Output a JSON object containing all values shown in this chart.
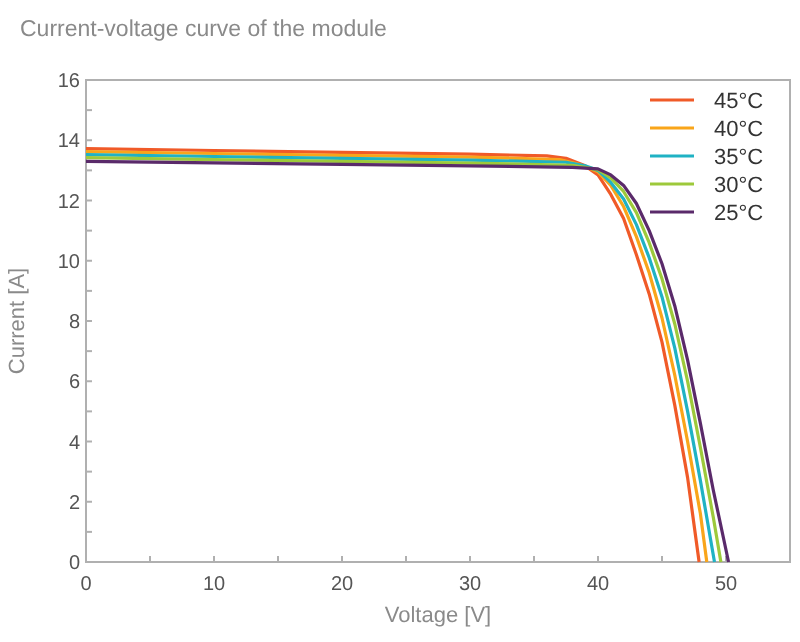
{
  "chart_data": {
    "type": "line",
    "title": "Current-voltage curve of the module",
    "xlabel": "Voltage [V]",
    "ylabel": "Current [A]",
    "xlim": [
      0,
      55
    ],
    "ylim": [
      0,
      16
    ],
    "xticks": [
      0,
      {
        "value": 5,
        "label": null
      },
      10,
      {
        "value": 15,
        "label": null
      },
      20,
      {
        "value": 25,
        "label": null
      },
      30,
      {
        "value": 35,
        "label": null
      },
      40,
      {
        "value": 45,
        "label": null
      },
      50
    ],
    "yticks": [
      0,
      {
        "value": 1,
        "label": null
      },
      2,
      {
        "value": 3,
        "label": null
      },
      4,
      {
        "value": 5,
        "label": null
      },
      6,
      {
        "value": 7,
        "label": null
      },
      8,
      {
        "value": 9,
        "label": null
      },
      10,
      {
        "value": 11,
        "label": null
      },
      12,
      {
        "value": 13,
        "label": null
      },
      14,
      {
        "value": 15,
        "label": null
      },
      16
    ],
    "grid": false,
    "legend": "top right",
    "marker": "none",
    "line_style": "solid",
    "series": [
      {
        "name": "45°C",
        "color": "#f05a28",
        "x": [
          0,
          10,
          20,
          30,
          36,
          37.5,
          39,
          40,
          41,
          42,
          43,
          44,
          45,
          46,
          47,
          47.9
        ],
        "values": [
          13.72,
          13.66,
          13.6,
          13.54,
          13.48,
          13.4,
          13.15,
          12.85,
          12.2,
          11.4,
          10.2,
          8.9,
          7.3,
          5.2,
          2.8,
          0
        ]
      },
      {
        "name": "40°C",
        "color": "#f9a51a",
        "x": [
          0,
          10,
          20,
          30,
          37,
          38.5,
          40,
          41,
          42,
          43,
          44,
          45,
          46,
          47,
          48,
          48.5
        ],
        "values": [
          13.62,
          13.56,
          13.5,
          13.44,
          13.36,
          13.2,
          12.95,
          12.5,
          11.8,
          10.8,
          9.6,
          8.1,
          6.2,
          4.0,
          1.6,
          0
        ]
      },
      {
        "name": "35°C",
        "color": "#1fb2c4",
        "x": [
          0,
          10,
          20,
          30,
          37.5,
          39,
          40,
          41,
          42,
          43,
          44,
          45,
          46,
          47,
          48,
          49.1
        ],
        "values": [
          13.52,
          13.46,
          13.4,
          13.34,
          13.27,
          13.15,
          13.0,
          12.6,
          12.05,
          11.2,
          10.1,
          8.8,
          7.1,
          5.0,
          2.7,
          0
        ]
      },
      {
        "name": "30°C",
        "color": "#9dc93b",
        "x": [
          0,
          10,
          20,
          30,
          38,
          39,
          40,
          41,
          42,
          43,
          44,
          45,
          46,
          47,
          48,
          49,
          49.6
        ],
        "values": [
          13.42,
          13.36,
          13.3,
          13.24,
          13.17,
          13.1,
          13.02,
          12.75,
          12.3,
          11.6,
          10.6,
          9.4,
          7.9,
          6.0,
          3.8,
          1.5,
          0
        ]
      },
      {
        "name": "25°C",
        "color": "#5a2a6a",
        "x": [
          0,
          10,
          20,
          30,
          38,
          40,
          41,
          42,
          43,
          44,
          45,
          46,
          47,
          48,
          49,
          50.2
        ],
        "values": [
          13.3,
          13.25,
          13.2,
          13.15,
          13.1,
          13.05,
          12.85,
          12.5,
          11.9,
          11.0,
          9.9,
          8.5,
          6.7,
          4.6,
          2.4,
          0
        ]
      }
    ]
  }
}
